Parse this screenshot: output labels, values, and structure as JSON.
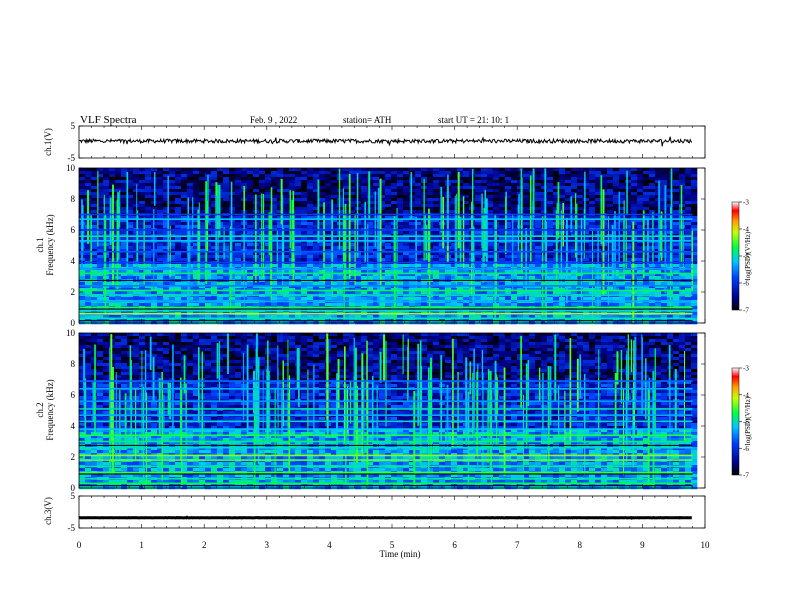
{
  "header": {
    "title": "VLF  Spectra",
    "date": "Feb. 9  , 2022",
    "station": "station= ATH",
    "start": "start  UT  =    21: 10: 1"
  },
  "chart_data": [
    {
      "type": "line",
      "name": "ch1-waveform",
      "ylabel": "ch.1(V)",
      "ylim": [
        -5,
        5
      ],
      "yticks": [
        "5",
        "-5"
      ],
      "x_range_min": [
        0,
        9.8
      ],
      "level": 0.3,
      "noise_amplitude": 0.6
    },
    {
      "type": "heatmap",
      "name": "ch1-spectrogram",
      "ylabel": "ch.1\nFrequency (kHz)",
      "ylim": [
        0,
        10
      ],
      "yticks": [
        "0",
        "2",
        "4",
        "6",
        "8",
        "10"
      ],
      "x_range_min": [
        0,
        9.8
      ],
      "colorbar": {
        "label": "log(PSD)(V²/Hz)",
        "ticks": [
          "-3",
          "-4",
          "-5",
          "-6",
          "-7"
        ],
        "range": [
          -7,
          -3
        ]
      },
      "bands_khz": [
        {
          "f": 0.3,
          "v": -4.9
        },
        {
          "f": 0.6,
          "v": -4.2
        },
        {
          "f": 0.8,
          "v": -5.0
        },
        {
          "f": 1.0,
          "v": -4.6
        },
        {
          "f": 1.4,
          "v": -5.3
        },
        {
          "f": 1.8,
          "v": -5.0
        },
        {
          "f": 2.1,
          "v": -4.7
        },
        {
          "f": 2.4,
          "v": -5.5
        },
        {
          "f": 3.2,
          "v": -4.8
        },
        {
          "f": 3.5,
          "v": -5.4
        },
        {
          "f": 3.9,
          "v": -5.8
        },
        {
          "f": 4.6,
          "v": -5.7
        },
        {
          "f": 5.3,
          "v": -5.2
        },
        {
          "f": 5.6,
          "v": -5.0
        },
        {
          "f": 6.0,
          "v": -5.9
        },
        {
          "f": 6.7,
          "v": -5.2
        },
        {
          "f": 7.0,
          "v": -5.8
        }
      ]
    },
    {
      "type": "heatmap",
      "name": "ch2-spectrogram",
      "ylabel": "ch.2\nFrequency (kHz)",
      "ylim": [
        0,
        10
      ],
      "yticks": [
        "0",
        "2",
        "4",
        "6",
        "8",
        "10"
      ],
      "x_range_min": [
        0,
        9.8
      ],
      "colorbar": {
        "label": "log(PSD)(V²/Hz)",
        "ticks": [
          "-3",
          "-4",
          "-5",
          "-6",
          "-7"
        ],
        "range": [
          -7,
          -3
        ]
      },
      "bands_khz": [
        {
          "f": 0.3,
          "v": -4.7
        },
        {
          "f": 0.6,
          "v": -4.9
        },
        {
          "f": 1.0,
          "v": -4.5
        },
        {
          "f": 1.4,
          "v": -4.9
        },
        {
          "f": 1.8,
          "v": -4.4
        },
        {
          "f": 2.1,
          "v": -4.3
        },
        {
          "f": 2.6,
          "v": -5.0
        },
        {
          "f": 3.0,
          "v": -4.8
        },
        {
          "f": 3.4,
          "v": -4.6
        },
        {
          "f": 3.8,
          "v": -5.2
        },
        {
          "f": 4.3,
          "v": -5.1
        },
        {
          "f": 4.7,
          "v": -5.3
        },
        {
          "f": 5.1,
          "v": -5.0
        },
        {
          "f": 5.6,
          "v": -5.4
        },
        {
          "f": 6.4,
          "v": -5.3
        },
        {
          "f": 6.9,
          "v": -5.6
        }
      ]
    },
    {
      "type": "line",
      "name": "ch3-waveform",
      "ylabel": "ch.3(V)",
      "ylim": [
        -5,
        5
      ],
      "yticks": [
        "5",
        "-5"
      ],
      "x_range_min": [
        0,
        9.8
      ],
      "level": -1.8,
      "noise_amplitude": 0.05
    }
  ],
  "xaxis": {
    "label": "Time  (min)",
    "ticks": [
      "0",
      "1",
      "2",
      "3",
      "4",
      "5",
      "6",
      "7",
      "8",
      "9",
      "10"
    ],
    "range": [
      0,
      10
    ]
  }
}
